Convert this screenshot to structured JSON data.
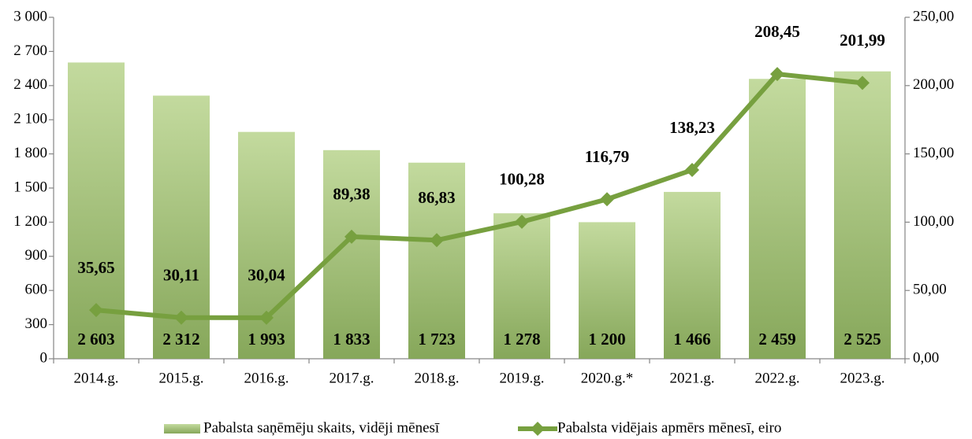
{
  "chart_data": {
    "type": "bar",
    "categories": [
      "2014.g.",
      "2015.g.",
      "2016.g.",
      "2017.g.",
      "2018.g.",
      "2019.g.",
      "2020.g.*",
      "2021.g.",
      "2022.g.",
      "2023.g."
    ],
    "series": [
      {
        "name": "Pabalsta saņēmēju skaits, vidēji mēnesī",
        "type": "bar",
        "color": "#9bbb59",
        "values": [
          2603,
          2312,
          1993,
          1833,
          1723,
          1278,
          1200,
          1466,
          2459,
          2525
        ],
        "value_labels": [
          "2 603",
          "2 312",
          "1 993",
          "1 833",
          "1 723",
          "1 278",
          "1 200",
          "1 466",
          "2 459",
          "2 525"
        ]
      },
      {
        "name": "Pabalsta vidējais apmērs mēnesī, eiro",
        "type": "line",
        "axis": "y2",
        "color": "#77a03f",
        "values": [
          35.65,
          30.11,
          30.04,
          89.38,
          86.83,
          100.28,
          116.79,
          138.23,
          208.45,
          201.99
        ],
        "value_labels": [
          "35,65",
          "30,11",
          "30,04",
          "89,38",
          "86,83",
          "100,28",
          "116,79",
          "138,23",
          "208,45",
          "201,99"
        ]
      }
    ],
    "ylim": [
      0,
      3000
    ],
    "yticks": [
      0,
      300,
      600,
      900,
      {
        "value": 1200,
        "label": "1 200"
      },
      {
        "value": 1500,
        "label": "1 500"
      },
      {
        "value": 1800,
        "label": "1 800"
      },
      {
        "value": 2100,
        "label": "2 100"
      },
      {
        "value": 2400,
        "label": "2 400"
      },
      {
        "value": 2700,
        "label": "2 700"
      },
      {
        "value": 3000,
        "label": "3 000"
      }
    ],
    "y2lim": [
      0,
      250
    ],
    "y2ticks": [
      {
        "value": 0,
        "label": "0,00"
      },
      {
        "value": 50,
        "label": "50,00"
      },
      {
        "value": 100,
        "label": "100,00"
      },
      {
        "value": 150,
        "label": "150,00"
      },
      {
        "value": 200,
        "label": "200,00"
      },
      {
        "value": 250,
        "label": "250,00"
      }
    ],
    "legend": "bottom"
  }
}
